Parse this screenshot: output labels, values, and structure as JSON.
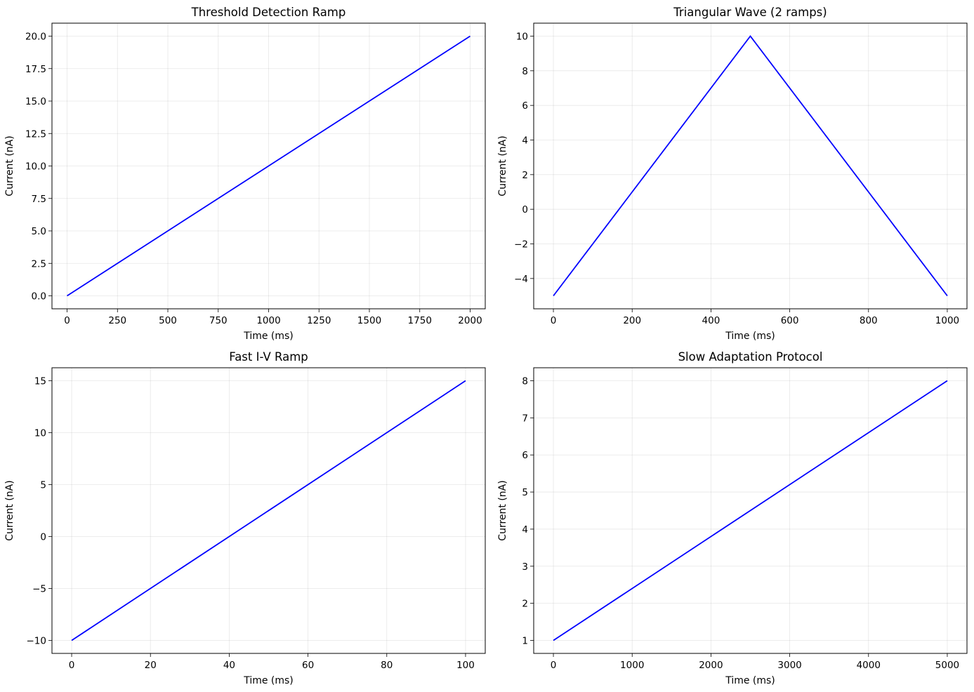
{
  "chart_data": [
    {
      "type": "line",
      "title": "Threshold Detection Ramp",
      "xlabel": "Time (ms)",
      "ylabel": "Current (nA)",
      "xlim": [
        -75,
        2075
      ],
      "ylim": [
        -1.0,
        21.0
      ],
      "xticks": [
        0,
        250,
        500,
        750,
        1000,
        1250,
        1500,
        1750,
        2000
      ],
      "xtick_labels": [
        "0",
        "250",
        "500",
        "750",
        "1000",
        "1250",
        "1500",
        "1750",
        "2000"
      ],
      "yticks": [
        0,
        2.5,
        5,
        7.5,
        10,
        12.5,
        15,
        17.5,
        20
      ],
      "ytick_labels": [
        "0.0",
        "2.5",
        "5.0",
        "7.5",
        "10.0",
        "12.5",
        "15.0",
        "17.5",
        "20.0"
      ],
      "grid": true,
      "series": [
        {
          "x": [
            0,
            2000
          ],
          "y": [
            0,
            20
          ],
          "color": "#0000ff"
        }
      ]
    },
    {
      "type": "line",
      "title": "Triangular Wave (2 ramps)",
      "xlabel": "Time (ms)",
      "ylabel": "Current (nA)",
      "xlim": [
        -50,
        1050
      ],
      "ylim": [
        -5.75,
        10.75
      ],
      "xticks": [
        0,
        200,
        400,
        600,
        800,
        1000
      ],
      "xtick_labels": [
        "0",
        "200",
        "400",
        "600",
        "800",
        "1000"
      ],
      "yticks": [
        -4,
        -2,
        0,
        2,
        4,
        6,
        8,
        10
      ],
      "ytick_labels": [
        "−4",
        "−2",
        "0",
        "2",
        "4",
        "6",
        "8",
        "10"
      ],
      "grid": true,
      "series": [
        {
          "x": [
            0,
            500,
            1000
          ],
          "y": [
            -5,
            10,
            -5
          ],
          "color": "#0000ff"
        }
      ]
    },
    {
      "type": "line",
      "title": "Fast I-V Ramp",
      "xlabel": "Time (ms)",
      "ylabel": "Current (nA)",
      "xlim": [
        -5,
        105
      ],
      "ylim": [
        -11.25,
        16.25
      ],
      "xticks": [
        0,
        20,
        40,
        60,
        80,
        100
      ],
      "xtick_labels": [
        "0",
        "20",
        "40",
        "60",
        "80",
        "100"
      ],
      "yticks": [
        -10,
        -5,
        0,
        5,
        10,
        15
      ],
      "ytick_labels": [
        "−10",
        "−5",
        "0",
        "5",
        "10",
        "15"
      ],
      "grid": true,
      "series": [
        {
          "x": [
            0,
            100
          ],
          "y": [
            -10,
            15
          ],
          "color": "#0000ff"
        }
      ]
    },
    {
      "type": "line",
      "title": "Slow Adaptation Protocol",
      "xlabel": "Time (ms)",
      "ylabel": "Current (nA)",
      "xlim": [
        -250,
        5250
      ],
      "ylim": [
        0.65,
        8.35
      ],
      "xticks": [
        0,
        1000,
        2000,
        3000,
        4000,
        5000
      ],
      "xtick_labels": [
        "0",
        "1000",
        "2000",
        "3000",
        "4000",
        "5000"
      ],
      "yticks": [
        1,
        2,
        3,
        4,
        5,
        6,
        7,
        8
      ],
      "ytick_labels": [
        "1",
        "2",
        "3",
        "4",
        "5",
        "6",
        "7",
        "8"
      ],
      "grid": true,
      "series": [
        {
          "x": [
            0,
            5000
          ],
          "y": [
            1,
            8
          ],
          "color": "#0000ff"
        }
      ]
    }
  ]
}
